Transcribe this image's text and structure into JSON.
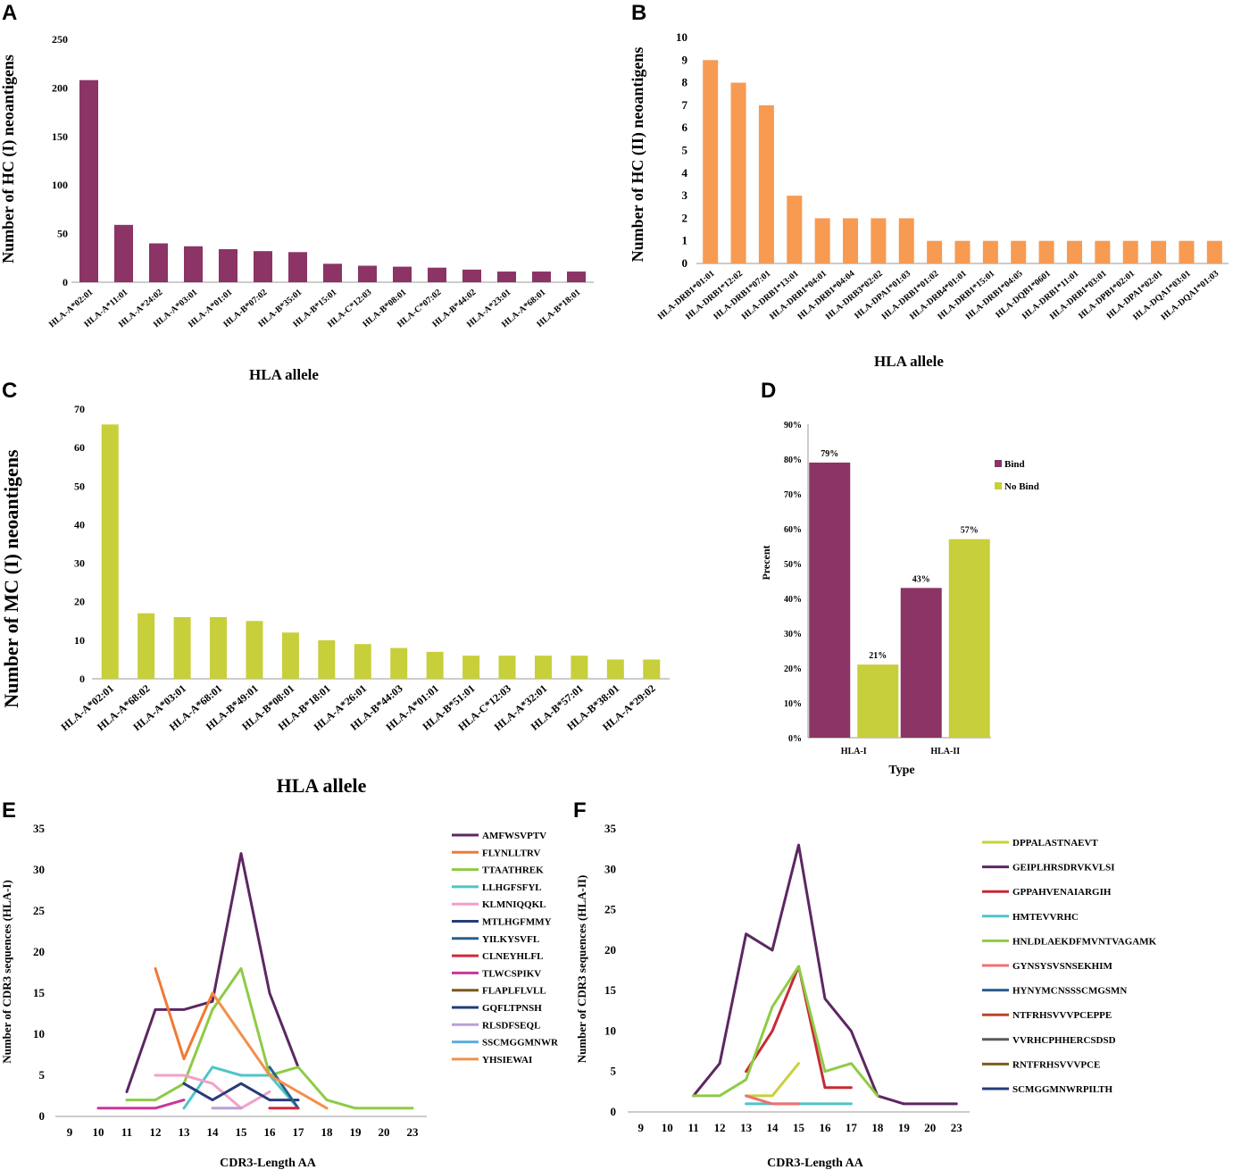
{
  "chart_data": [
    {
      "panel": "A",
      "type": "bar",
      "color": "#8b3465",
      "title": "",
      "xlabel": "HLA allele",
      "ylabel": "Number of HC (I) neoantigens",
      "ylim": [
        0,
        250
      ],
      "yticks": [
        0,
        50,
        100,
        150,
        200,
        250
      ],
      "categories": [
        "HLA-A*02:01",
        "HLA-A*11:01",
        "HLA-A*24:02",
        "HLA-A*03:01",
        "HLA-A*01:01",
        "HLA-B*07:02",
        "HLA-B*35:01",
        "HLA-B*15:01",
        "HLA-C*12:03",
        "HLA-B*08:01",
        "HLA-C*07:02",
        "HLA-B*44:02",
        "HLA-A*23:01",
        "HLA-A*68:01",
        "HLA-B*18:01"
      ],
      "values": [
        208,
        59,
        40,
        37,
        34,
        32,
        31,
        19,
        17,
        16,
        15,
        13,
        11,
        11,
        11
      ]
    },
    {
      "panel": "B",
      "type": "bar",
      "color": "#f79a52",
      "title": "",
      "xlabel": "HLA allele",
      "ylabel": "Number of HC (II) neoantigens",
      "ylim": [
        0,
        10
      ],
      "yticks": [
        0,
        1,
        2,
        3,
        4,
        5,
        6,
        7,
        8,
        9,
        10
      ],
      "categories": [
        "HLA-DRB1*01:01",
        "HLA-DRB1*12:02",
        "HLA-DRB1*07:01",
        "HLA-DRB1*13:01",
        "HLA-DRB1*04:01",
        "HLA-DRB1*04:04",
        "HLA-DRB3*02:02",
        "HLA-DPA1*01:03",
        "HLA-DRB1*01:02",
        "HLA-DRB4*01:01",
        "HLA-DRB1*15:01",
        "HLA-DRB1*04:05",
        "HLA-DQB1*0601",
        "HLA-DRB1*11:01",
        "HLA-DRB1*03:01",
        "HLA-DPB1*02:01",
        "HLA-DPA1*02:01",
        "HLA-DQA1*03:01",
        "HLA-DQA1*01:03"
      ],
      "values": [
        9,
        8,
        7,
        3,
        2,
        2,
        2,
        2,
        1,
        1,
        1,
        1,
        1,
        1,
        1,
        1,
        1,
        1,
        1
      ]
    },
    {
      "panel": "C",
      "type": "bar",
      "color": "#c7cf3a",
      "title": "",
      "xlabel": "HLA allele",
      "ylabel": "Number of MC (I) neoantigens",
      "ylim": [
        0,
        70
      ],
      "yticks": [
        0,
        10,
        20,
        30,
        40,
        50,
        60,
        70
      ],
      "categories": [
        "HLA-A*02:01",
        "HLA-A*68:02",
        "HLA-A*03:01",
        "HLA-A*68:01",
        "HLA-B*49:01",
        "HLA-B*08:01",
        "HLA-B*18:01",
        "HLA-A*26:01",
        "HLA-B*44:03",
        "HLA-A*01:01",
        "HLA-B*51:01",
        "HLA-C*12:03",
        "HLA-A*32:01",
        "HLA-B*57:01",
        "HLA-B*38:01",
        "HLA-A*29:02"
      ],
      "values": [
        66,
        17,
        16,
        16,
        15,
        12,
        10,
        9,
        8,
        7,
        6,
        6,
        6,
        6,
        5,
        5
      ]
    },
    {
      "panel": "D",
      "type": "bar",
      "title": "",
      "xlabel": "Type",
      "ylabel": "Precent",
      "ylim": [
        0,
        90
      ],
      "yticks": [
        "0%",
        "10%",
        "20%",
        "30%",
        "40%",
        "50%",
        "60%",
        "70%",
        "80%",
        "90%"
      ],
      "categories": [
        "HLA-I",
        "HLA-II"
      ],
      "series": [
        {
          "name": "Bind",
          "color": "#8b3465",
          "values": [
            79,
            43
          ],
          "labels": [
            "79%",
            "43%"
          ]
        },
        {
          "name": "No Bind",
          "color": "#c7cf3a",
          "values": [
            21,
            57
          ],
          "labels": [
            "21%",
            "57%"
          ]
        }
      ],
      "legend": "right"
    },
    {
      "panel": "E",
      "type": "line",
      "title": "",
      "xlabel": "CDR3-Length AA",
      "ylabel": "Number of CDR3 sequences (HLA-I)",
      "ylim": [
        0,
        35
      ],
      "yticks": [
        0,
        5,
        10,
        15,
        20,
        25,
        30,
        35
      ],
      "categories": [
        "9",
        "10",
        "11",
        "12",
        "13",
        "14",
        "15",
        "16",
        "17",
        "18",
        "19",
        "20",
        "23"
      ],
      "legend": "right",
      "series": [
        {
          "name": "AMFWSVPTV",
          "color": "#5c2762",
          "points": [
            [
              2,
              3
            ],
            [
              3,
              13
            ],
            [
              4,
              13
            ],
            [
              5,
              14
            ],
            [
              6,
              32
            ],
            [
              7,
              15
            ],
            [
              8,
              6
            ]
          ]
        },
        {
          "name": "FLYNLLTRV",
          "color": "#f07a32",
          "points": [
            [
              3,
              18
            ],
            [
              4,
              7
            ],
            [
              5,
              15
            ]
          ]
        },
        {
          "name": "TTAATHREK",
          "color": "#8ecb45",
          "points": [
            [
              2,
              2
            ],
            [
              3,
              2
            ],
            [
              4,
              4
            ],
            [
              5,
              13
            ],
            [
              6,
              18
            ],
            [
              7,
              5
            ],
            [
              8,
              6
            ],
            [
              9,
              2
            ],
            [
              10,
              1
            ],
            [
              11,
              1
            ],
            [
              12,
              1
            ]
          ]
        },
        {
          "name": "LLHGFSFYL",
          "color": "#4ec5c8",
          "points": [
            [
              4,
              1
            ],
            [
              5,
              6
            ],
            [
              6,
              5
            ],
            [
              7,
              5
            ],
            [
              8,
              1
            ]
          ]
        },
        {
          "name": "KLMNIQQKL",
          "color": "#f2a0c8",
          "points": [
            [
              3,
              5
            ],
            [
              4,
              5
            ],
            [
              5,
              4
            ],
            [
              6,
              1
            ],
            [
              7,
              3
            ]
          ]
        },
        {
          "name": "MTLHGFMMY",
          "color": "#283c7a",
          "points": [
            [
              4,
              4
            ],
            [
              5,
              2
            ],
            [
              6,
              4
            ],
            [
              7,
              2
            ],
            [
              8,
              2
            ]
          ]
        },
        {
          "name": "YILKYSVFL",
          "color": "#2a5f8f",
          "points": [
            [
              7,
              6
            ],
            [
              8,
              1
            ]
          ]
        },
        {
          "name": "CLNEYHLFL",
          "color": "#d02a38",
          "points": [
            [
              7,
              1
            ],
            [
              8,
              1
            ]
          ]
        },
        {
          "name": "TLWCSPIKV",
          "color": "#c8379a",
          "points": [
            [
              1,
              1
            ],
            [
              2,
              1
            ],
            [
              3,
              1
            ],
            [
              4,
              2
            ]
          ]
        },
        {
          "name": "FLAPLFLVLL",
          "color": "#7a5a1e",
          "points": []
        },
        {
          "name": "GQFLTPNSH",
          "color": "#1f3e78",
          "points": []
        },
        {
          "name": "RLSDFSEQL",
          "color": "#b9a0d8",
          "points": [
            [
              5,
              1
            ],
            [
              6,
              1
            ]
          ]
        },
        {
          "name": "SSCMGGMNWR",
          "color": "#5aaee0",
          "points": []
        },
        {
          "name": "YHSIEWAI",
          "color": "#f2904a",
          "points": [
            [
              5,
              15
            ],
            [
              6,
              10
            ],
            [
              7,
              5
            ],
            [
              9,
              1
            ]
          ]
        }
      ]
    },
    {
      "panel": "F",
      "type": "line",
      "title": "",
      "xlabel": "CDR3-Length AA",
      "ylabel": "Number of CDR3 sequences (HLA-II)",
      "ylim": [
        0,
        35
      ],
      "yticks": [
        0,
        5,
        10,
        15,
        20,
        25,
        30,
        35
      ],
      "categories": [
        "9",
        "10",
        "11",
        "12",
        "13",
        "14",
        "15",
        "16",
        "17",
        "18",
        "19",
        "20",
        "23"
      ],
      "legend": "right",
      "series": [
        {
          "name": "DPPALASTNAEVT",
          "color": "#c8d23a",
          "points": [
            [
              4,
              2
            ],
            [
              5,
              2
            ],
            [
              6,
              6
            ]
          ]
        },
        {
          "name": "GEIPLHRSDRVKVLSI",
          "color": "#5c2762",
          "points": [
            [
              2,
              2
            ],
            [
              3,
              6
            ],
            [
              4,
              22
            ],
            [
              5,
              20
            ],
            [
              6,
              33
            ],
            [
              7,
              14
            ],
            [
              8,
              10
            ],
            [
              9,
              2
            ],
            [
              10,
              1
            ],
            [
              11,
              1
            ],
            [
              12,
              1
            ]
          ]
        },
        {
          "name": "GPPAHVENAIARGIH",
          "color": "#c82a34",
          "points": [
            [
              4,
              5
            ],
            [
              5,
              10
            ],
            [
              6,
              18
            ],
            [
              7,
              3
            ],
            [
              8,
              3
            ]
          ]
        },
        {
          "name": "HMTEVVRHC",
          "color": "#4ec5c8",
          "points": [
            [
              4,
              1
            ],
            [
              5,
              1
            ],
            [
              6,
              1
            ],
            [
              7,
              1
            ],
            [
              8,
              1
            ]
          ]
        },
        {
          "name": "HNLDLAEKDFMVNTVAGAMK",
          "color": "#8ecb45",
          "points": [
            [
              2,
              2
            ],
            [
              3,
              2
            ],
            [
              4,
              4
            ],
            [
              5,
              13
            ],
            [
              6,
              18
            ],
            [
              7,
              5
            ],
            [
              8,
              6
            ],
            [
              9,
              2
            ]
          ]
        },
        {
          "name": "GYNSYSVSNSEKHIM",
          "color": "#f07070",
          "points": [
            [
              4,
              2
            ],
            [
              5,
              1
            ],
            [
              6,
              1
            ]
          ]
        },
        {
          "name": "HYNYMCNSSSCMGSMN",
          "color": "#2a5f8f",
          "points": []
        },
        {
          "name": "NTFRHSVVVPCEPPE",
          "color": "#b8462a",
          "points": []
        },
        {
          "name": "VVRHCPHHERCSDSD",
          "color": "#5a5a5a",
          "points": []
        },
        {
          "name": "RNTFRHSVVVPCE",
          "color": "#7a5a1e",
          "points": []
        },
        {
          "name": "SCMGGMNWRPILTH",
          "color": "#283c7a",
          "points": []
        }
      ]
    }
  ]
}
